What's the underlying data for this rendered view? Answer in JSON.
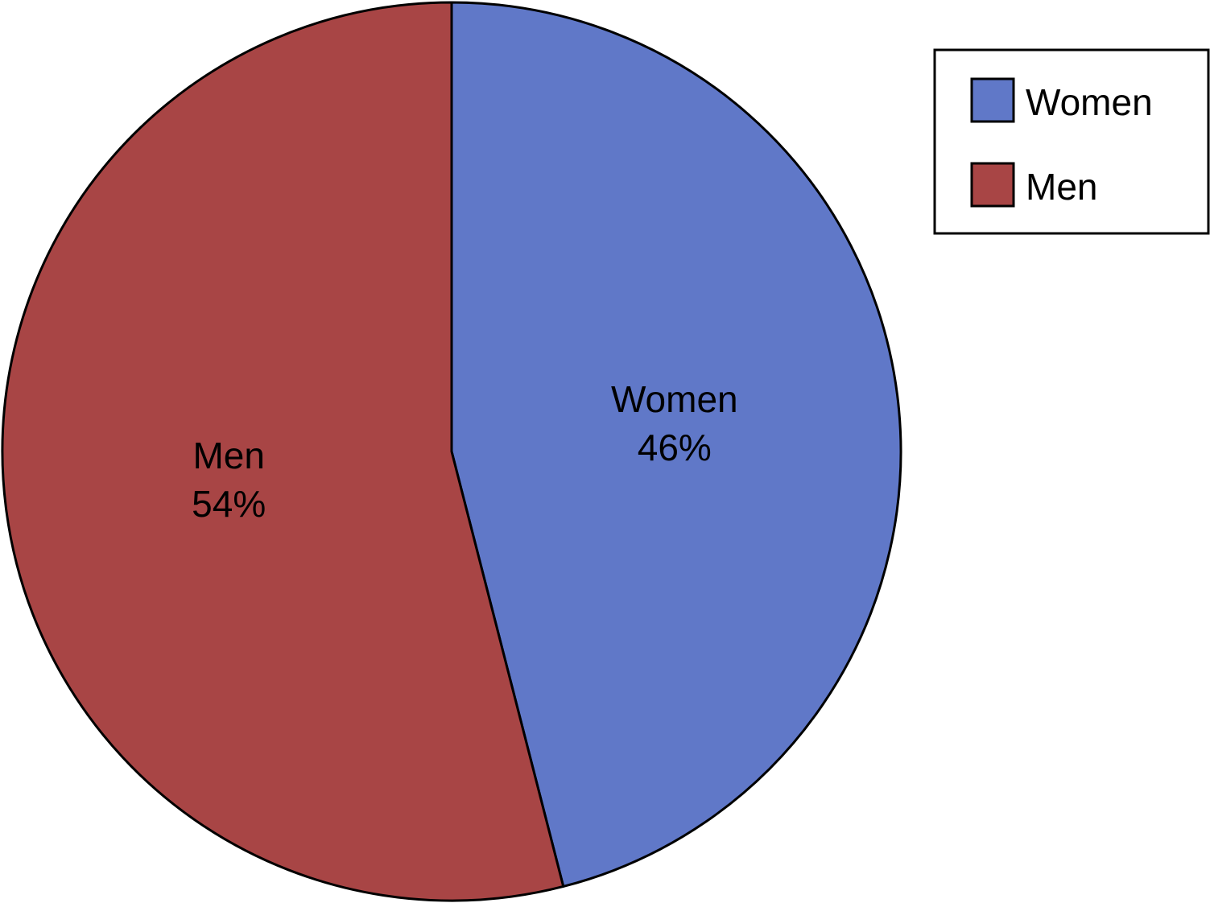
{
  "chart_data": {
    "type": "pie",
    "slices": [
      {
        "label": "Women",
        "value": 46,
        "value_label": "46%",
        "color": "#6078C8"
      },
      {
        "label": "Men",
        "value": 54,
        "value_label": "54%",
        "color": "#A84545"
      }
    ],
    "legend": {
      "position": "top-right",
      "entries": [
        {
          "label": "Women",
          "color": "#6078C8"
        },
        {
          "label": "Men",
          "color": "#A84545"
        }
      ]
    },
    "start": "12 o'clock",
    "direction": "clockwise"
  }
}
